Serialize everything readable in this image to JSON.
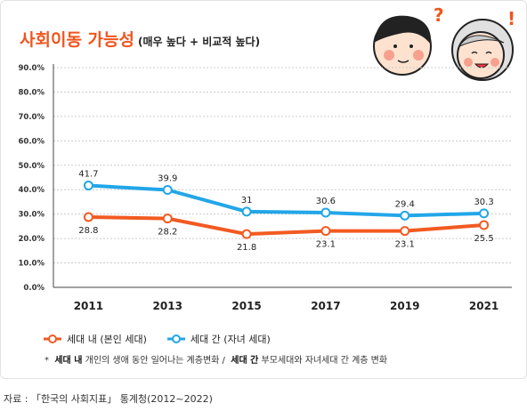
{
  "chart_data": {
    "type": "line",
    "title": "사회이동 가능성",
    "subtitle": "(매우 높다 + 비교적 높다)",
    "categories": [
      "2011",
      "2013",
      "2015",
      "2017",
      "2019",
      "2021"
    ],
    "series": [
      {
        "name": "세대 내 (본인 세대)",
        "color": "#f25a22",
        "values": [
          28.8,
          28.2,
          21.8,
          23.1,
          23.1,
          25.5
        ]
      },
      {
        "name": "세대 간 (자녀 세대)",
        "color": "#22a6e8",
        "values": [
          41.7,
          39.9,
          31.0,
          30.6,
          29.4,
          30.3
        ]
      }
    ],
    "ylim": [
      0,
      90
    ],
    "yticks": [
      {
        "value": 0,
        "label": "0.0%"
      },
      {
        "value": 10,
        "label": "10.0%"
      },
      {
        "value": 20,
        "label": "20.0%"
      },
      {
        "value": 30,
        "label": "30.0%"
      },
      {
        "value": 40,
        "label": "40.0%"
      },
      {
        "value": 50,
        "label": "50.0%"
      },
      {
        "value": 60,
        "label": "60.0%"
      },
      {
        "value": 70,
        "label": "70.0%"
      },
      {
        "value": 80,
        "label": "80.0%"
      },
      {
        "value": 90,
        "label": "90.0%"
      }
    ],
    "grid": true
  },
  "note": {
    "marker": "*",
    "items": [
      {
        "term": "세대 내",
        "text": "개인의 생애 동안 일어나는 계층변화 /"
      },
      {
        "term": "세대 간",
        "text": "부모세대와 자녀세대 간 계층 변화"
      }
    ]
  },
  "source": "자료 : 「한국의 사회지표」 통계청(2012~2022)"
}
